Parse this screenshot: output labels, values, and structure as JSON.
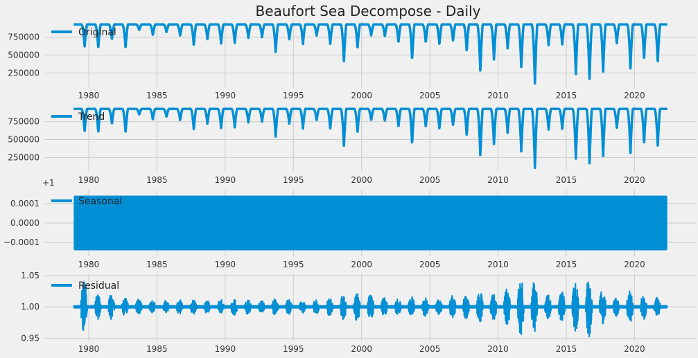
{
  "chart_data": {
    "type": "line",
    "title": "Beaufort Sea Decompose - Daily",
    "color": "#008fd5",
    "background": "#f0f0f0",
    "grid_color": "#cbcbcb",
    "grid": true,
    "legend_placement": "top-left",
    "x_range": [
      1976.8,
      2024.5
    ],
    "x_ticks": [
      1980,
      1985,
      1990,
      1995,
      2000,
      2005,
      2010,
      2015,
      2020
    ],
    "series_span": [
      1978.9,
      2022.4
    ],
    "panels": [
      {
        "name": "Original",
        "ylim": [
          50000,
          980000
        ],
        "yticks": [
          250000,
          500000,
          750000
        ],
        "ytick_labels": [
          "250000",
          "500000",
          "750000"
        ],
        "summer_max": 930000,
        "annual_minima": [
          [
            1979,
            610000
          ],
          [
            1980,
            600000
          ],
          [
            1981,
            720000
          ],
          [
            1982,
            600000
          ],
          [
            1983,
            850000
          ],
          [
            1984,
            780000
          ],
          [
            1985,
            820000
          ],
          [
            1986,
            770000
          ],
          [
            1987,
            640000
          ],
          [
            1988,
            720000
          ],
          [
            1989,
            660000
          ],
          [
            1990,
            670000
          ],
          [
            1991,
            740000
          ],
          [
            1992,
            750000
          ],
          [
            1993,
            540000
          ],
          [
            1994,
            720000
          ],
          [
            1995,
            650000
          ],
          [
            1996,
            770000
          ],
          [
            1997,
            650000
          ],
          [
            1998,
            400000
          ],
          [
            1999,
            600000
          ],
          [
            2000,
            770000
          ],
          [
            2001,
            760000
          ],
          [
            2002,
            680000
          ],
          [
            2003,
            440000
          ],
          [
            2004,
            680000
          ],
          [
            2005,
            650000
          ],
          [
            2006,
            700000
          ],
          [
            2007,
            560000
          ],
          [
            2008,
            270000
          ],
          [
            2009,
            430000
          ],
          [
            2010,
            590000
          ],
          [
            2011,
            330000
          ],
          [
            2012,
            100000
          ],
          [
            2013,
            640000
          ],
          [
            2014,
            650000
          ],
          [
            2015,
            230000
          ],
          [
            2016,
            160000
          ],
          [
            2017,
            260000
          ],
          [
            2018,
            660000
          ],
          [
            2019,
            300000
          ],
          [
            2020,
            450000
          ],
          [
            2021,
            400000
          ]
        ]
      },
      {
        "name": "Trend",
        "ylim": [
          50000,
          980000
        ],
        "yticks": [
          250000,
          500000,
          750000
        ],
        "ytick_labels": [
          "250000",
          "500000",
          "750000"
        ],
        "same_as": "Original"
      },
      {
        "name": "Seasonal",
        "ylim": [
          -0.00017,
          0.00017
        ],
        "yticks": [
          -0.0001,
          0.0,
          0.0001
        ],
        "ytick_labels": [
          "−0.0001",
          "0.0000",
          "0.0001"
        ],
        "offset_label": "+1",
        "band": [
          -0.00014,
          0.00014
        ]
      },
      {
        "name": "Residual",
        "ylim": [
          0.946,
          1.052
        ],
        "yticks": [
          0.95,
          1.0,
          1.05
        ],
        "ytick_labels": [
          "0.95",
          "1.00",
          "1.05"
        ],
        "baseline": 1.0,
        "annual_amplitude": [
          [
            1979,
            0.04
          ],
          [
            1980,
            0.02
          ],
          [
            1981,
            0.02
          ],
          [
            1982,
            0.015
          ],
          [
            1983,
            0.012
          ],
          [
            1984,
            0.01
          ],
          [
            1985,
            0.01
          ],
          [
            1986,
            0.012
          ],
          [
            1987,
            0.012
          ],
          [
            1988,
            0.01
          ],
          [
            1989,
            0.012
          ],
          [
            1990,
            0.014
          ],
          [
            1991,
            0.012
          ],
          [
            1992,
            0.01
          ],
          [
            1993,
            0.013
          ],
          [
            1994,
            0.012
          ],
          [
            1995,
            0.01
          ],
          [
            1996,
            0.012
          ],
          [
            1997,
            0.015
          ],
          [
            1998,
            0.02
          ],
          [
            1999,
            0.022
          ],
          [
            2000,
            0.02
          ],
          [
            2001,
            0.015
          ],
          [
            2002,
            0.013
          ],
          [
            2003,
            0.016
          ],
          [
            2004,
            0.015
          ],
          [
            2005,
            0.012
          ],
          [
            2006,
            0.018
          ],
          [
            2007,
            0.02
          ],
          [
            2008,
            0.025
          ],
          [
            2009,
            0.022
          ],
          [
            2010,
            0.03
          ],
          [
            2011,
            0.045
          ],
          [
            2012,
            0.04
          ],
          [
            2013,
            0.02
          ],
          [
            2014,
            0.025
          ],
          [
            2015,
            0.04
          ],
          [
            2016,
            0.048
          ],
          [
            2017,
            0.03
          ],
          [
            2018,
            0.015
          ],
          [
            2019,
            0.025
          ],
          [
            2020,
            0.02
          ],
          [
            2021,
            0.015
          ]
        ]
      }
    ]
  }
}
